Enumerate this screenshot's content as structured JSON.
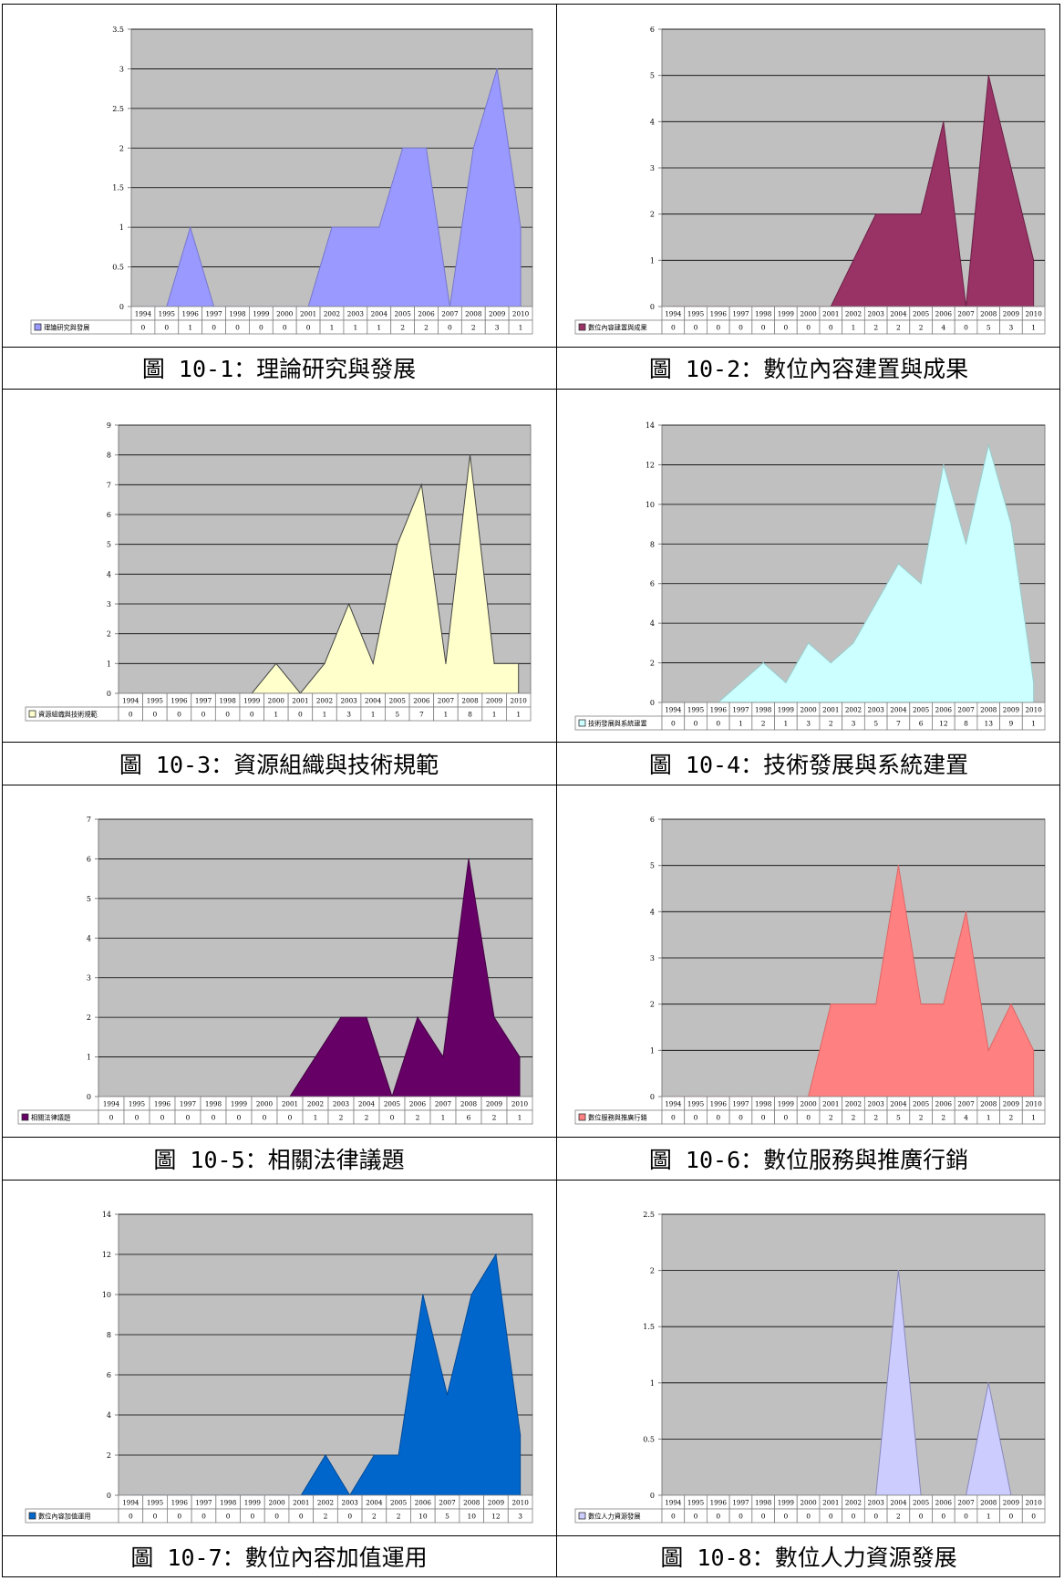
{
  "chart_data": [
    {
      "type": "area",
      "caption": "圖 10-1：理論研究與發展",
      "legend": "理論研究與發展",
      "legend_marker": "square-outline",
      "categories": [
        "1994",
        "1995",
        "1996",
        "1997",
        "1998",
        "1999",
        "2000",
        "2001",
        "2002",
        "2003",
        "2004",
        "2005",
        "2006",
        "2007",
        "2008",
        "2009",
        "2010"
      ],
      "values": [
        0,
        0,
        1,
        0,
        0,
        0,
        0,
        0,
        1,
        1,
        1,
        2,
        2,
        0,
        2,
        3,
        1
      ],
      "ylim": [
        0,
        3.5
      ],
      "yticks": [
        "0",
        "0.5",
        "1",
        "1.5",
        "2",
        "2.5",
        "3",
        "3.5"
      ],
      "fill": "#9999FF",
      "stroke": "#7777cc",
      "grid": true
    },
    {
      "type": "area",
      "caption": "圖 10-2：數位內容建置與成果",
      "legend": "數位內容建置與成果",
      "legend_marker": "square-filled",
      "categories": [
        "1994",
        "1995",
        "1996",
        "1997",
        "1998",
        "1999",
        "2000",
        "2001",
        "2002",
        "2003",
        "2004",
        "2005",
        "2006",
        "2007",
        "2008",
        "2009",
        "2010"
      ],
      "values": [
        0,
        0,
        0,
        0,
        0,
        0,
        0,
        0,
        1,
        2,
        2,
        2,
        4,
        0,
        5,
        3,
        1
      ],
      "ylim": [
        0,
        6
      ],
      "yticks": [
        "0",
        "1",
        "2",
        "3",
        "4",
        "5",
        "6"
      ],
      "fill": "#993366",
      "stroke": "#6b1f45",
      "grid": true
    },
    {
      "type": "area",
      "caption": "圖 10-3：資源組織與技術規範",
      "legend": "資源組織與技術規範",
      "legend_marker": "square-outline",
      "categories": [
        "1994",
        "1995",
        "1996",
        "1997",
        "1998",
        "1999",
        "2000",
        "2001",
        "2002",
        "2003",
        "2004",
        "2005",
        "2006",
        "2007",
        "2008",
        "2009",
        "2010"
      ],
      "values": [
        0,
        0,
        0,
        0,
        0,
        0,
        1,
        0,
        1,
        3,
        1,
        5,
        7,
        1,
        8,
        1,
        1
      ],
      "ylim": [
        0,
        9
      ],
      "yticks": [
        "0",
        "1",
        "2",
        "3",
        "4",
        "5",
        "6",
        "7",
        "8",
        "9"
      ],
      "fill": "#FFFFCC",
      "stroke": "#444444",
      "grid": true
    },
    {
      "type": "area",
      "caption": "圖 10-4：技術發展與系統建置",
      "legend": "技術發展與系統建置",
      "legend_marker": "square-outline",
      "categories": [
        "1994",
        "1995",
        "1996",
        "1997",
        "1998",
        "1999",
        "2000",
        "2001",
        "2002",
        "2003",
        "2004",
        "2005",
        "2006",
        "2007",
        "2008",
        "2009",
        "2010"
      ],
      "values": [
        0,
        0,
        0,
        1,
        2,
        1,
        3,
        2,
        3,
        5,
        7,
        6,
        12,
        8,
        13,
        9,
        1
      ],
      "ylim": [
        0,
        14
      ],
      "yticks": [
        "0",
        "2",
        "4",
        "6",
        "8",
        "10",
        "12",
        "14"
      ],
      "fill": "#CCFFFF",
      "stroke": "#99cccc",
      "grid": true
    },
    {
      "type": "area",
      "caption": "圖 10-5：相關法律議題",
      "legend": "相關法律議題",
      "legend_marker": "square-filled",
      "categories": [
        "1994",
        "1995",
        "1996",
        "1997",
        "1998",
        "1999",
        "2000",
        "2001",
        "2002",
        "2003",
        "2004",
        "2005",
        "2006",
        "2007",
        "2008",
        "2009",
        "2010"
      ],
      "values": [
        0,
        0,
        0,
        0,
        0,
        0,
        0,
        0,
        1,
        2,
        2,
        0,
        2,
        1,
        6,
        2,
        1
      ],
      "ylim": [
        0,
        7
      ],
      "yticks": [
        "0",
        "1",
        "2",
        "3",
        "4",
        "5",
        "6",
        "7"
      ],
      "fill": "#660066",
      "stroke": "#440044",
      "grid": true
    },
    {
      "type": "area",
      "caption": "圖 10-6：數位服務與推廣行銷",
      "legend": "數位服務與推廣行銷",
      "legend_marker": "square-outline",
      "categories": [
        "1994",
        "1995",
        "1996",
        "1997",
        "1998",
        "1999",
        "2000",
        "2001",
        "2002",
        "2003",
        "2004",
        "2005",
        "2006",
        "2007",
        "2008",
        "2009",
        "2010"
      ],
      "values": [
        0,
        0,
        0,
        0,
        0,
        0,
        0,
        2,
        2,
        2,
        5,
        2,
        2,
        4,
        1,
        2,
        1
      ],
      "ylim": [
        0,
        6
      ],
      "yticks": [
        "0",
        "1",
        "2",
        "3",
        "4",
        "5",
        "6"
      ],
      "fill": "#FF8080",
      "stroke": "#dd6666",
      "grid": true
    },
    {
      "type": "area",
      "caption": "圖 10-7：數位內容加值運用",
      "legend": "數位內容加值運用",
      "legend_marker": "square-filled",
      "categories": [
        "1994",
        "1995",
        "1996",
        "1997",
        "1998",
        "1999",
        "2000",
        "2001",
        "2002",
        "2003",
        "2004",
        "2005",
        "2006",
        "2007",
        "2008",
        "2009",
        "2010"
      ],
      "values": [
        0,
        0,
        0,
        0,
        0,
        0,
        0,
        0,
        2,
        0,
        2,
        2,
        10,
        5,
        10,
        12,
        3
      ],
      "ylim": [
        0,
        14
      ],
      "yticks": [
        "0",
        "2",
        "4",
        "6",
        "8",
        "10",
        "12",
        "14"
      ],
      "fill": "#0066CC",
      "stroke": "#004a99",
      "grid": true
    },
    {
      "type": "area",
      "caption": "圖 10-8：數位人力資源發展",
      "legend": "數位人力資源發展",
      "legend_marker": "square-outline",
      "categories": [
        "1994",
        "1995",
        "1996",
        "1997",
        "1998",
        "1999",
        "2000",
        "2001",
        "2002",
        "2003",
        "2004",
        "2005",
        "2006",
        "2007",
        "2008",
        "2009",
        "2010"
      ],
      "values": [
        0,
        0,
        0,
        0,
        0,
        0,
        0,
        0,
        0,
        0,
        2,
        0,
        0,
        0,
        1,
        0,
        0
      ],
      "ylim": [
        0,
        2.5
      ],
      "yticks": [
        "0",
        "0.5",
        "1",
        "1.5",
        "2",
        "2.5"
      ],
      "fill": "#CCCCFF",
      "stroke": "#8888bb",
      "grid": true
    }
  ]
}
